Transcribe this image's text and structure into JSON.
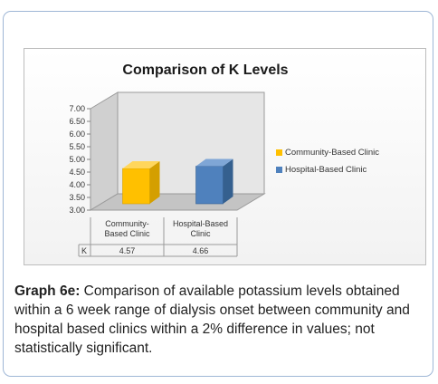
{
  "chart_data": {
    "type": "bar",
    "title": "Comparison of K Levels",
    "categories": [
      "Community-Based Clinic",
      "Hospital-Based Clinic"
    ],
    "category_tick_lines": [
      [
        "Community-",
        "Based Clinic"
      ],
      [
        "Hospital-Based",
        "Clinic"
      ]
    ],
    "series": [
      {
        "values": [
          4.57,
          4.66
        ]
      }
    ],
    "legend": [
      "Community-Based Clinic",
      "Hospital-Based Clinic"
    ],
    "legend_position": "right",
    "data_table": {
      "row_label": "K",
      "values": [
        "4.57",
        "4.66"
      ]
    },
    "colors": [
      "#ffc000",
      "#4f81bd"
    ],
    "ylim": [
      3.0,
      7.0
    ],
    "yticks": [
      "3.00",
      "3.50",
      "4.00",
      "4.50",
      "5.00",
      "5.50",
      "6.00",
      "6.50",
      "7.00"
    ],
    "grid": false,
    "style": "3d-column"
  },
  "caption": {
    "label": "Graph 6e:",
    "text": " Comparison of available potassium levels obtained within a 6 week range of dialysis onset between community and hospital based clinics within a 2% difference in values; not statistically significant."
  }
}
